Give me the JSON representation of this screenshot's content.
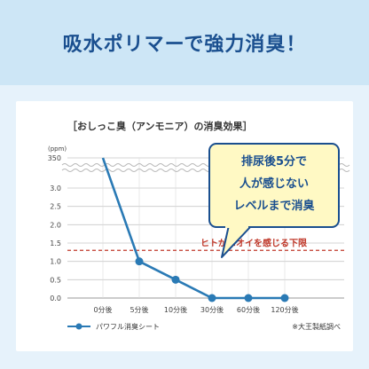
{
  "headline": "吸水ポリマーで強力消臭！",
  "chart_data": {
    "type": "line",
    "title": "［おしっこ臭（アンモニア）の消臭効果］",
    "unit_label": "(ppm)",
    "categories": [
      "0分後",
      "5分後",
      "10分後",
      "30分後",
      "60分後",
      "120分後"
    ],
    "series": [
      {
        "name": "パワフル消臭シート",
        "values": [
          350,
          1.0,
          0.5,
          0.0,
          0.0,
          0.0
        ]
      }
    ],
    "y_ticks": [
      "0.0",
      "0.5",
      "1.0",
      "1.5",
      "2.0",
      "2.5",
      "3.0",
      "350"
    ],
    "y_axis_break": [
      3.0,
      350
    ],
    "ylim": [
      0,
      350
    ],
    "threshold": {
      "value": 1.3,
      "label": "ヒトがニオイを感じる下限"
    },
    "callout": [
      "排尿後5分で",
      "人が感じない",
      "レベルまで消臭"
    ],
    "source_note": "※大王製紙調べ",
    "line_color": "#2a7ab5",
    "threshold_color": "#c0392b",
    "grid": true,
    "legend_position": "bottom-left"
  }
}
